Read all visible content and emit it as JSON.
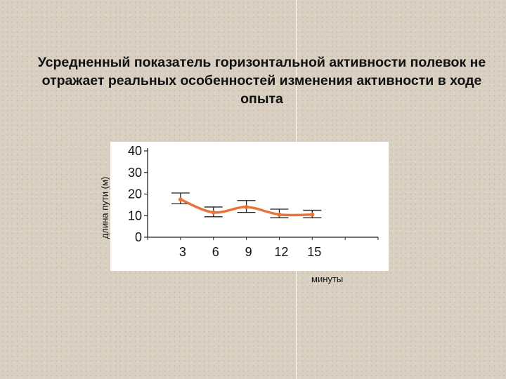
{
  "slide": {
    "title": "Усредненный показатель горизонтальной активности полевок не отражает реальных особенностей изменения активности  в ходе опыта"
  },
  "chart_data": {
    "type": "line",
    "x": [
      3,
      6,
      9,
      12,
      15
    ],
    "categories": [
      "3",
      "6",
      "9",
      "12",
      "15"
    ],
    "series": [
      {
        "values": [
          17.5,
          11.5,
          14,
          10.5,
          10.5
        ],
        "error_low": [
          15.5,
          9.5,
          11.5,
          9,
          9
        ],
        "error_high": [
          20.5,
          14,
          17,
          13,
          12.5
        ],
        "color": "#e8743b"
      }
    ],
    "yticks": [
      "0",
      "10",
      "20",
      "30",
      "40"
    ],
    "ylim": [
      0,
      40
    ],
    "xlabel": "минуты",
    "ylabel": "длина пути (м)",
    "grid": false,
    "legend": false
  }
}
